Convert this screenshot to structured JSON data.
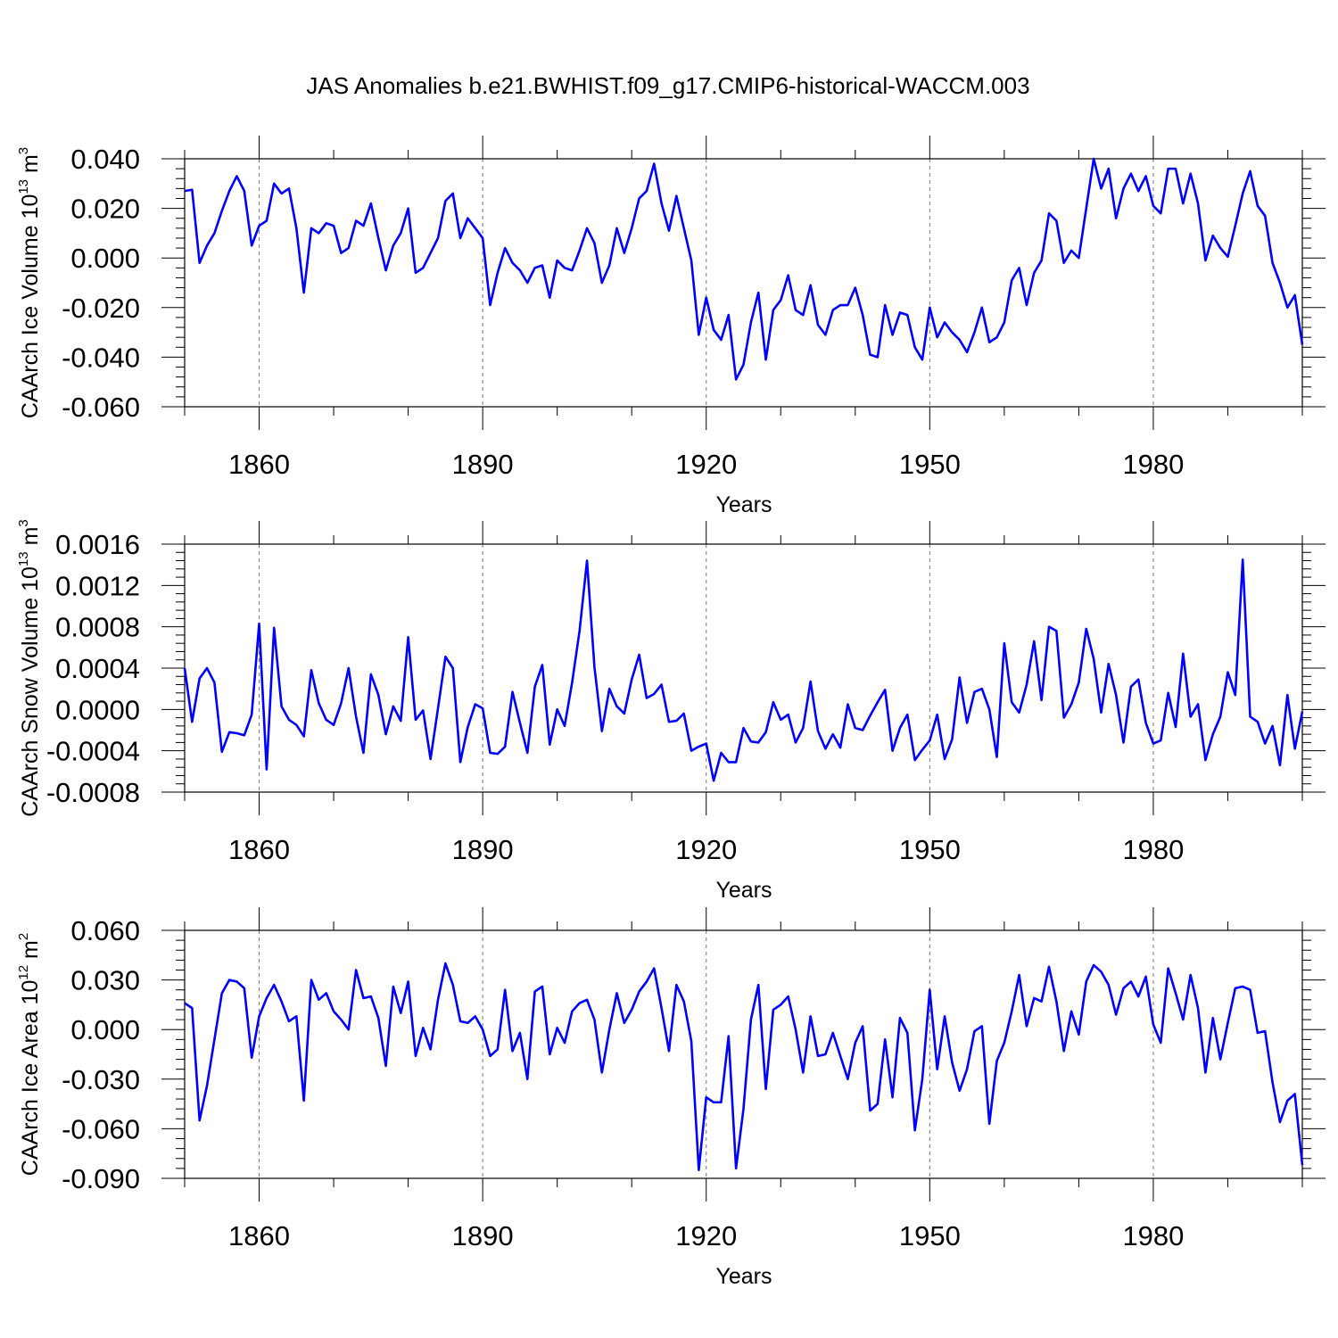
{
  "chart_data": {
    "type": "line",
    "title": "JAS Anomalies b.e21.BWHIST.f09_g17.CMIP6-historical-WACCM.003",
    "line_color": "#0000ff",
    "xlim": [
      1850,
      2000
    ],
    "x_start": 1850,
    "x_ticks": [
      1860,
      1890,
      1920,
      1950,
      1980
    ],
    "x_tick_labels": [
      "1860",
      "1890",
      "1920",
      "1950",
      "1980"
    ],
    "panels": [
      {
        "id": "ice-volume",
        "xlabel": "Years",
        "ylabel": {
          "main": "CAArch Ice Volume 10",
          "sup1": "13",
          "mid": " m",
          "sup2": "3"
        },
        "ylim": [
          -0.06,
          0.04
        ],
        "y_ticks": [
          -0.06,
          -0.04,
          -0.02,
          0.0,
          0.02,
          0.04
        ],
        "y_tick_labels": [
          "-0.060",
          "-0.040",
          "-0.020",
          "0.000",
          "0.020",
          "0.040"
        ],
        "values": [
          0.027,
          0.0275,
          -0.002,
          0.005,
          0.01,
          0.019,
          0.027,
          0.033,
          0.027,
          0.005,
          0.013,
          0.015,
          0.03,
          0.026,
          0.028,
          0.012,
          -0.014,
          0.012,
          0.01,
          0.014,
          0.013,
          0.002,
          0.004,
          0.015,
          0.013,
          0.022,
          0.008,
          -0.005,
          0.005,
          0.01,
          0.02,
          -0.006,
          -0.004,
          0.002,
          0.008,
          0.023,
          0.026,
          0.008,
          0.016,
          0.012,
          0.008,
          -0.019,
          -0.006,
          0.004,
          -0.002,
          -0.005,
          -0.01,
          -0.004,
          -0.003,
          -0.016,
          -0.001,
          -0.004,
          -0.005,
          0.003,
          0.012,
          0.006,
          -0.01,
          -0.003,
          0.012,
          0.002,
          0.012,
          0.024,
          0.027,
          0.038,
          0.022,
          0.011,
          0.025,
          0.012,
          -0.001,
          -0.031,
          -0.016,
          -0.029,
          -0.033,
          -0.023,
          -0.049,
          -0.043,
          -0.026,
          -0.014,
          -0.041,
          -0.021,
          -0.017,
          -0.007,
          -0.021,
          -0.023,
          -0.011,
          -0.027,
          -0.031,
          -0.021,
          -0.019,
          -0.019,
          -0.012,
          -0.023,
          -0.039,
          -0.04,
          -0.019,
          -0.031,
          -0.022,
          -0.023,
          -0.036,
          -0.041,
          -0.02,
          -0.032,
          -0.026,
          -0.03,
          -0.033,
          -0.038,
          -0.03,
          -0.02,
          -0.034,
          -0.032,
          -0.026,
          -0.009,
          -0.004,
          -0.019,
          -0.006,
          -0.001,
          0.018,
          0.015,
          -0.002,
          0.003,
          0.0,
          0.02,
          0.04,
          0.028,
          0.036,
          0.016,
          0.028,
          0.034,
          0.027,
          0.033,
          0.021,
          0.018,
          0.036,
          0.036,
          0.022,
          0.034,
          0.022,
          -0.001,
          0.009,
          0.004,
          0.0005,
          0.013,
          0.026,
          0.035,
          0.021,
          0.017,
          -0.002,
          -0.01,
          -0.02,
          -0.015,
          -0.035
        ]
      },
      {
        "id": "snow-volume",
        "xlabel": "Years",
        "ylabel": {
          "main": "CAArch Snow Volume 10",
          "sup1": "13",
          "mid": " m",
          "sup2": "3"
        },
        "ylim": [
          -0.0008,
          0.0016
        ],
        "y_ticks": [
          -0.0008,
          -0.0004,
          0.0,
          0.0004,
          0.0008,
          0.0012,
          0.0016
        ],
        "y_tick_labels": [
          "-0.0008",
          "-0.0004",
          "0.0000",
          "0.0004",
          "0.0008",
          "0.0012",
          "0.0016"
        ],
        "values": [
          0.0004,
          -0.00012,
          0.0003,
          0.0004,
          0.00026,
          -0.00041,
          -0.00022,
          -0.00023,
          -0.00025,
          -5e-05,
          0.00083,
          -0.00058,
          0.00079,
          3e-05,
          -0.0001,
          -0.00015,
          -0.00026,
          0.00038,
          6e-05,
          -0.0001,
          -0.00015,
          6e-05,
          0.0004,
          -7e-05,
          -0.00042,
          0.00034,
          0.00014,
          -0.00024,
          3e-05,
          -0.00011,
          0.0007,
          -0.0001,
          -1e-05,
          -0.00048,
          1e-05,
          0.00051,
          0.0004,
          -0.00051,
          -0.00017,
          5e-05,
          1e-05,
          -0.00042,
          -0.00043,
          -0.00036,
          0.00017,
          -0.00013,
          -0.00042,
          0.00022,
          0.00043,
          -0.00034,
          0.0,
          -0.00016,
          0.00026,
          0.00076,
          0.00144,
          0.00041,
          -0.00021,
          0.0002,
          3e-05,
          -4e-05,
          0.00029,
          0.00053,
          0.00011,
          0.00015,
          0.00024,
          -0.00012,
          -0.00011,
          -4e-05,
          -0.0004,
          -0.00036,
          -0.00033,
          -0.00069,
          -0.00042,
          -0.00051,
          -0.00051,
          -0.00018,
          -0.00031,
          -0.00032,
          -0.00022,
          7e-05,
          -0.0001,
          -5e-05,
          -0.00032,
          -0.00018,
          0.00027,
          -0.00021,
          -0.00038,
          -0.00024,
          -0.00037,
          5e-05,
          -0.00018,
          -0.0002,
          -6e-05,
          7e-05,
          0.00019,
          -0.0004,
          -0.00018,
          -5e-05,
          -0.00049,
          -0.00039,
          -0.0003,
          -5e-05,
          -0.00048,
          -0.00029,
          0.00031,
          -0.00013,
          0.00017,
          0.0002,
          0.0,
          -0.00046,
          0.00064,
          7e-05,
          -3e-05,
          0.00024,
          0.00066,
          9e-05,
          0.0008,
          0.00076,
          -8e-05,
          5e-05,
          0.00026,
          0.00078,
          0.00049,
          -3e-05,
          0.00044,
          0.00014,
          -0.00032,
          0.00022,
          0.00029,
          -0.00013,
          -0.00033,
          -0.0003,
          0.00016,
          -0.00017,
          0.00054,
          -7e-05,
          5e-05,
          -0.00049,
          -0.00024,
          -7e-05,
          0.00036,
          0.00014,
          0.00145,
          -7e-05,
          -0.00012,
          -0.00033,
          -0.00016,
          -0.00054,
          0.00014,
          -0.00038,
          -2e-05
        ]
      },
      {
        "id": "ice-area",
        "xlabel": "Years",
        "ylabel": {
          "main": "CAArch Ice Area 10",
          "sup1": "12",
          "mid": " m",
          "sup2": "2"
        },
        "ylim": [
          -0.09,
          0.06
        ],
        "y_ticks": [
          -0.09,
          -0.06,
          -0.03,
          0.0,
          0.03,
          0.06
        ],
        "y_tick_labels": [
          "-0.090",
          "-0.060",
          "-0.030",
          "0.000",
          "0.030",
          "0.060"
        ],
        "values": [
          0.016,
          0.013,
          -0.055,
          -0.034,
          -0.006,
          0.022,
          0.03,
          0.029,
          0.025,
          -0.017,
          0.008,
          0.019,
          0.027,
          0.017,
          0.005,
          0.008,
          -0.043,
          0.03,
          0.018,
          0.022,
          0.011,
          0.006,
          0.0,
          0.036,
          0.019,
          0.02,
          0.007,
          -0.022,
          0.026,
          0.01,
          0.029,
          -0.016,
          0.001,
          -0.012,
          0.018,
          0.04,
          0.027,
          0.005,
          0.004,
          0.008,
          0.0,
          -0.016,
          -0.012,
          0.024,
          -0.013,
          -0.002,
          -0.03,
          0.023,
          0.026,
          -0.015,
          0.001,
          -0.008,
          0.011,
          0.016,
          0.018,
          0.006,
          -0.026,
          0.0,
          0.022,
          0.004,
          0.012,
          0.023,
          0.029,
          0.037,
          0.013,
          -0.013,
          0.027,
          0.017,
          -0.007,
          -0.085,
          -0.041,
          -0.044,
          -0.044,
          -0.004,
          -0.084,
          -0.048,
          0.006,
          0.027,
          -0.036,
          0.012,
          0.015,
          0.02,
          0.0,
          -0.026,
          0.008,
          -0.016,
          -0.015,
          -0.002,
          -0.016,
          -0.03,
          -0.008,
          0.002,
          -0.049,
          -0.045,
          -0.006,
          -0.041,
          0.007,
          -0.002,
          -0.061,
          -0.03,
          0.024,
          -0.024,
          0.008,
          -0.02,
          -0.037,
          -0.024,
          -0.001,
          0.002,
          -0.057,
          -0.019,
          -0.008,
          0.011,
          0.033,
          0.002,
          0.019,
          0.017,
          0.038,
          0.017,
          -0.013,
          0.011,
          -0.003,
          0.029,
          0.039,
          0.035,
          0.027,
          0.009,
          0.025,
          0.029,
          0.02,
          0.032,
          0.003,
          -0.008,
          0.037,
          0.022,
          0.006,
          0.033,
          0.013,
          -0.026,
          0.007,
          -0.018,
          0.004,
          0.025,
          0.026,
          0.024,
          -0.002,
          -0.001,
          -0.032,
          -0.056,
          -0.043,
          -0.039,
          -0.082
        ]
      }
    ]
  }
}
